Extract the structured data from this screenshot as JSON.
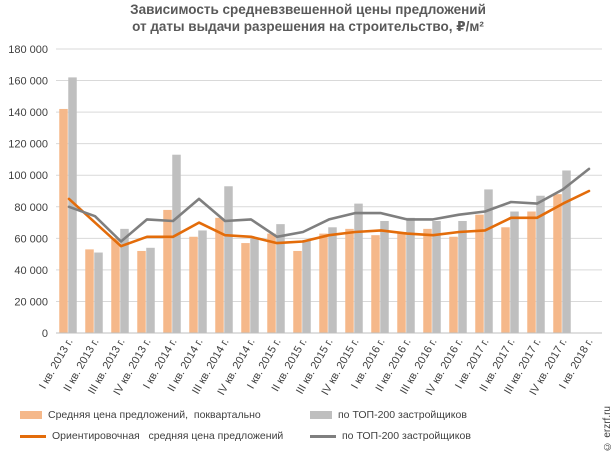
{
  "title_line1": "Зависимость средневзвешенной цены предложений",
  "title_line2": "от даты выдачи разрешения на строительство, ₽/м²",
  "watermark": "© erzrf.ru",
  "legend": {
    "bar1": "Средняя цена предложений,  поквартально",
    "bar2": "по ТОП-200 застройщиков",
    "line1": "Ориентировочная   средняя цена предложений",
    "line2": "по ТОП-200 застройщиков"
  },
  "colors": {
    "bar_avg": "#f5b88a",
    "bar_top200": "#bfbfbf",
    "line_avg": "#e36c0a",
    "line_top200": "#7f7f7f",
    "grid": "#d9d9d9"
  },
  "chart_data": {
    "type": "bar",
    "title": "Зависимость средневзвешенной цены предложений от даты выдачи разрешения на строительство, ₽/м²",
    "ylim": [
      0,
      180000
    ],
    "ytick_step": 20000,
    "ytick_labels": [
      "0",
      "20 000",
      "40 000",
      "60 000",
      "80 000",
      "100 000",
      "120 000",
      "140 000",
      "160 000",
      "180 000"
    ],
    "grid": true,
    "legend_position": "bottom",
    "categories": [
      "I кв. 2013 г.",
      "II кв. 2013 г.",
      "III кв. 2013 г.",
      "IV кв. 2013 г.",
      "I кв. 2014 г.",
      "II кв. 2014 г.",
      "III кв. 2014 г.",
      "IV кв. 2014 г.",
      "I кв. 2015 г.",
      "II кв. 2015 г.",
      "III кв. 2015 г.",
      "IV кв. 2015 г.",
      "I кв. 2016 г.",
      "II кв. 2016 г.",
      "III кв. 2016 г.",
      "IV кв. 2016 г.",
      "I кв. 2017 г.",
      "II кв. 2017 г.",
      "III кв. 2017 г.",
      "IV кв. 2017 г.",
      "I кв. 2018 г."
    ],
    "series": [
      {
        "name": "Средняя цена предложений,  поквартально",
        "kind": "bar",
        "values": [
          142000,
          53000,
          60000,
          52000,
          78000,
          61000,
          73000,
          57000,
          63000,
          52000,
          63000,
          66000,
          62000,
          64000,
          66000,
          61000,
          75000,
          67000,
          77000,
          88000,
          null
        ]
      },
      {
        "name": "по ТОП-200 застройщиков",
        "kind": "bar",
        "values": [
          162000,
          51000,
          66000,
          54000,
          113000,
          65000,
          93000,
          60000,
          69000,
          59000,
          67000,
          82000,
          71000,
          73000,
          71000,
          71000,
          91000,
          77000,
          87000,
          103000,
          null
        ]
      },
      {
        "name": "Ориентировочная   средняя цена предложений",
        "kind": "line",
        "values": [
          85000,
          70000,
          55000,
          61000,
          61000,
          70000,
          62000,
          61000,
          57000,
          58000,
          62000,
          64000,
          65000,
          63000,
          62000,
          64000,
          65000,
          73000,
          73000,
          82000,
          90000
        ]
      },
      {
        "name": "по ТОП-200 застройщиков",
        "kind": "line",
        "values": [
          80000,
          74000,
          58000,
          72000,
          71000,
          85000,
          71000,
          72000,
          61000,
          64000,
          72000,
          76000,
          76000,
          72000,
          72000,
          75000,
          77000,
          83000,
          82000,
          91000,
          104000
        ]
      }
    ]
  }
}
